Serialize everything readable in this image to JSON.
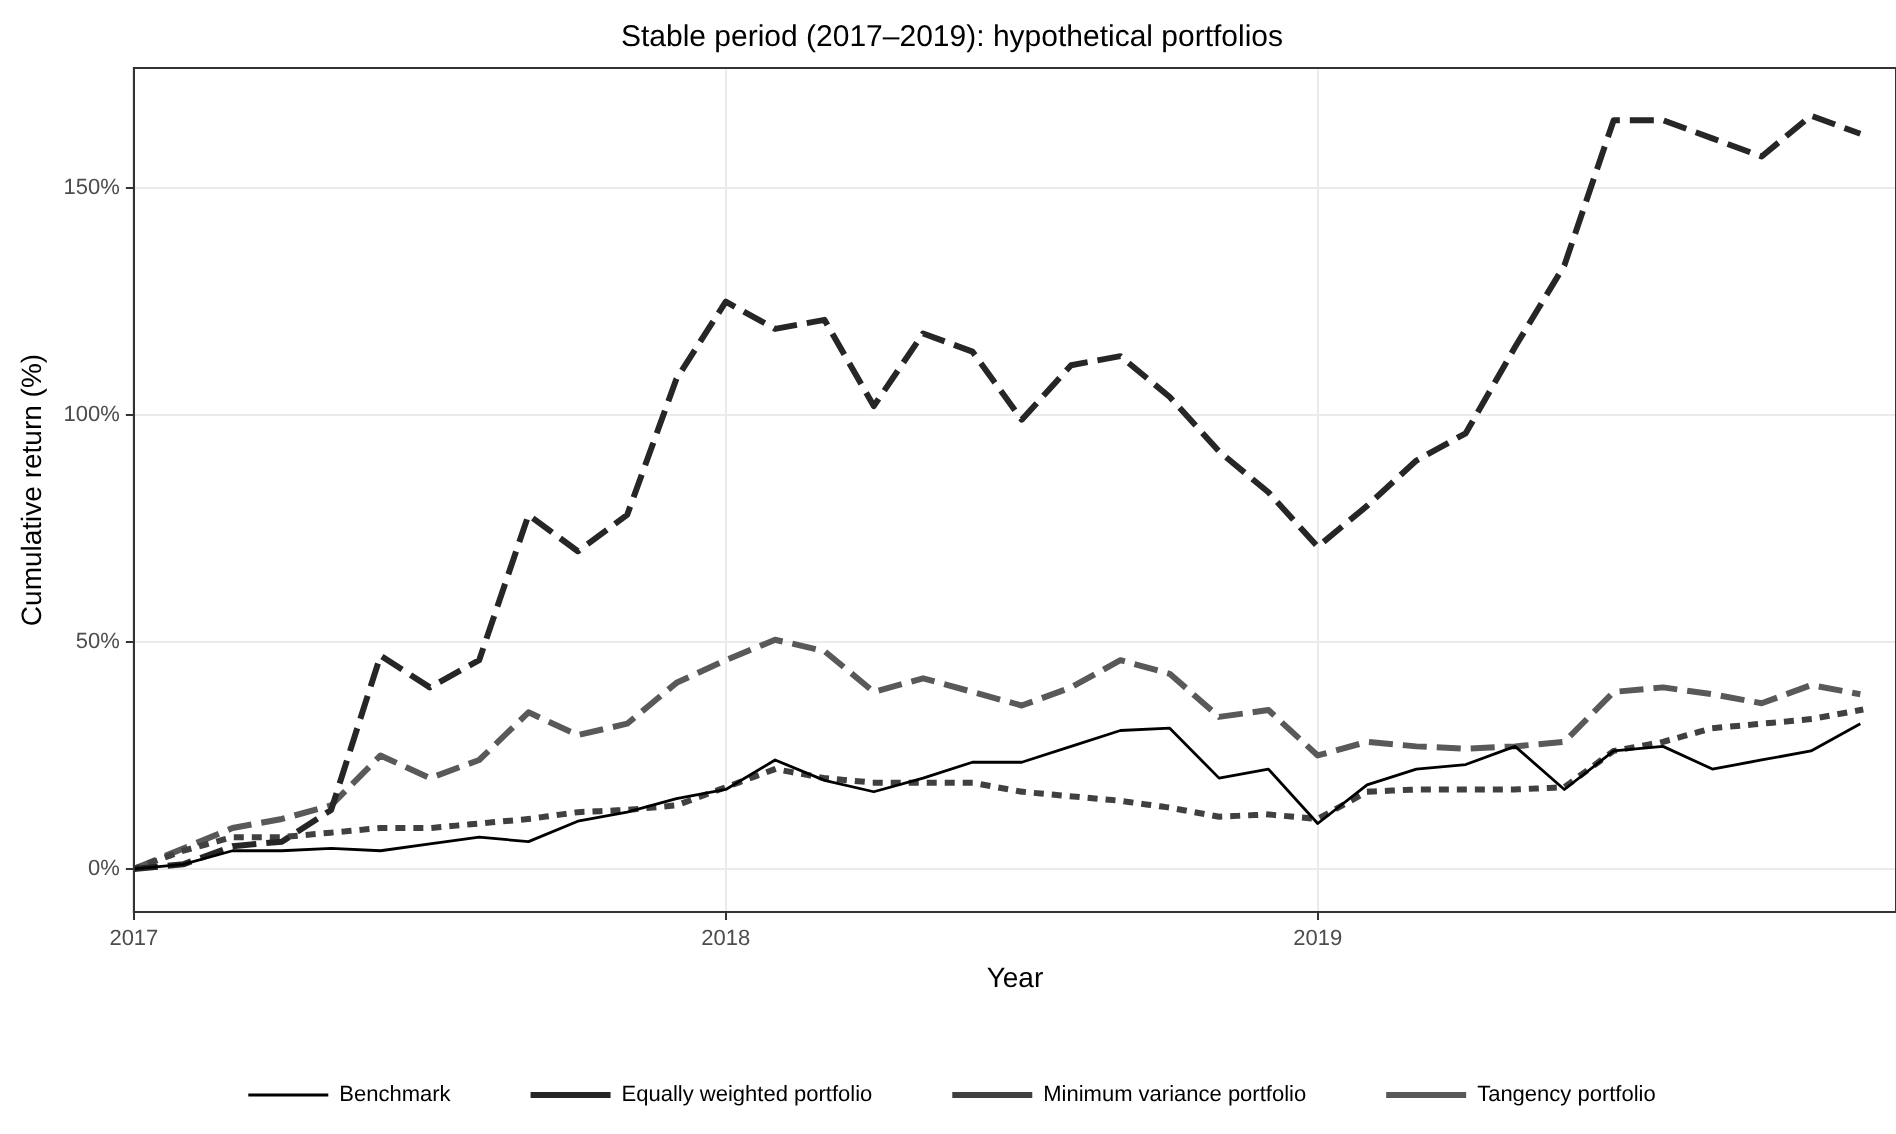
{
  "chart_data": {
    "type": "line",
    "title": "Stable period (2017–2019): hypothetical portfolios",
    "xlabel": "Year",
    "ylabel": "Cumulative return (%)",
    "x": [
      "2017-01",
      "2017-02",
      "2017-03",
      "2017-04",
      "2017-05",
      "2017-06",
      "2017-07",
      "2017-08",
      "2017-09",
      "2017-10",
      "2017-11",
      "2017-12",
      "2018-01",
      "2018-02",
      "2018-03",
      "2018-04",
      "2018-05",
      "2018-06",
      "2018-07",
      "2018-08",
      "2018-09",
      "2018-10",
      "2018-11",
      "2018-12",
      "2019-01",
      "2019-02",
      "2019-03",
      "2019-04",
      "2019-05",
      "2019-06",
      "2019-07",
      "2019-08",
      "2019-09",
      "2019-10",
      "2019-11",
      "2019-12"
    ],
    "series": [
      {
        "name": "Benchmark",
        "color": "#000000",
        "line_style": "solid",
        "values": [
          0,
          1,
          4,
          4,
          4.5,
          4,
          5.5,
          7,
          6,
          10.5,
          12.5,
          15.5,
          17.5,
          24,
          19.5,
          17,
          20,
          23.5,
          23.5,
          27,
          30.5,
          31,
          20,
          22,
          10,
          18.5,
          22,
          23,
          27,
          17.5,
          26,
          27,
          22,
          24,
          26,
          32
        ]
      },
      {
        "name": "Equally weighted portfolio",
        "color": "#262626",
        "line_style": "dashed",
        "values": [
          0,
          1,
          5,
          6,
          13,
          47,
          40,
          46,
          78,
          70,
          78,
          108,
          125,
          119,
          121,
          102,
          118,
          114,
          99,
          111,
          113,
          104,
          92,
          83,
          71,
          80,
          90,
          96,
          115,
          133,
          165,
          165,
          161,
          157,
          166,
          162
        ]
      },
      {
        "name": "Minimum variance portfolio",
        "color": "#404040",
        "line_style": "dotted",
        "values": [
          0,
          4,
          7,
          7,
          8,
          9,
          9,
          10,
          11,
          12.5,
          13,
          14,
          18,
          22,
          20,
          19,
          19,
          19,
          17,
          16,
          15,
          13.5,
          11.5,
          12,
          11,
          17,
          17.5,
          17.5,
          17.5,
          18,
          26,
          28,
          31,
          32,
          33,
          35
        ]
      },
      {
        "name": "Tangency portfolio",
        "color": "#595959",
        "line_style": "dashed",
        "values": [
          0,
          4.5,
          9,
          11,
          14,
          25,
          20,
          24,
          34.5,
          29.5,
          32,
          41,
          46,
          50.5,
          48,
          39,
          42,
          39,
          36,
          40,
          46,
          43,
          33.5,
          35,
          25,
          28,
          27,
          26.5,
          27,
          28,
          39,
          40,
          38.5,
          36.5,
          40.5,
          38.5
        ]
      }
    ],
    "xlim": [
      "2017-01-01",
      "2019-12-23"
    ],
    "xticks": [
      "2017",
      "2018",
      "2019"
    ],
    "ylim": [
      -9.5,
      176.5
    ],
    "yticks": [
      {
        "value": 0,
        "label": "0%"
      },
      {
        "value": 50,
        "label": "50%"
      },
      {
        "value": 100,
        "label": "100%"
      },
      {
        "value": 150,
        "label": "150%"
      }
    ],
    "grid": true,
    "legend": "bottom",
    "marker": "none"
  }
}
